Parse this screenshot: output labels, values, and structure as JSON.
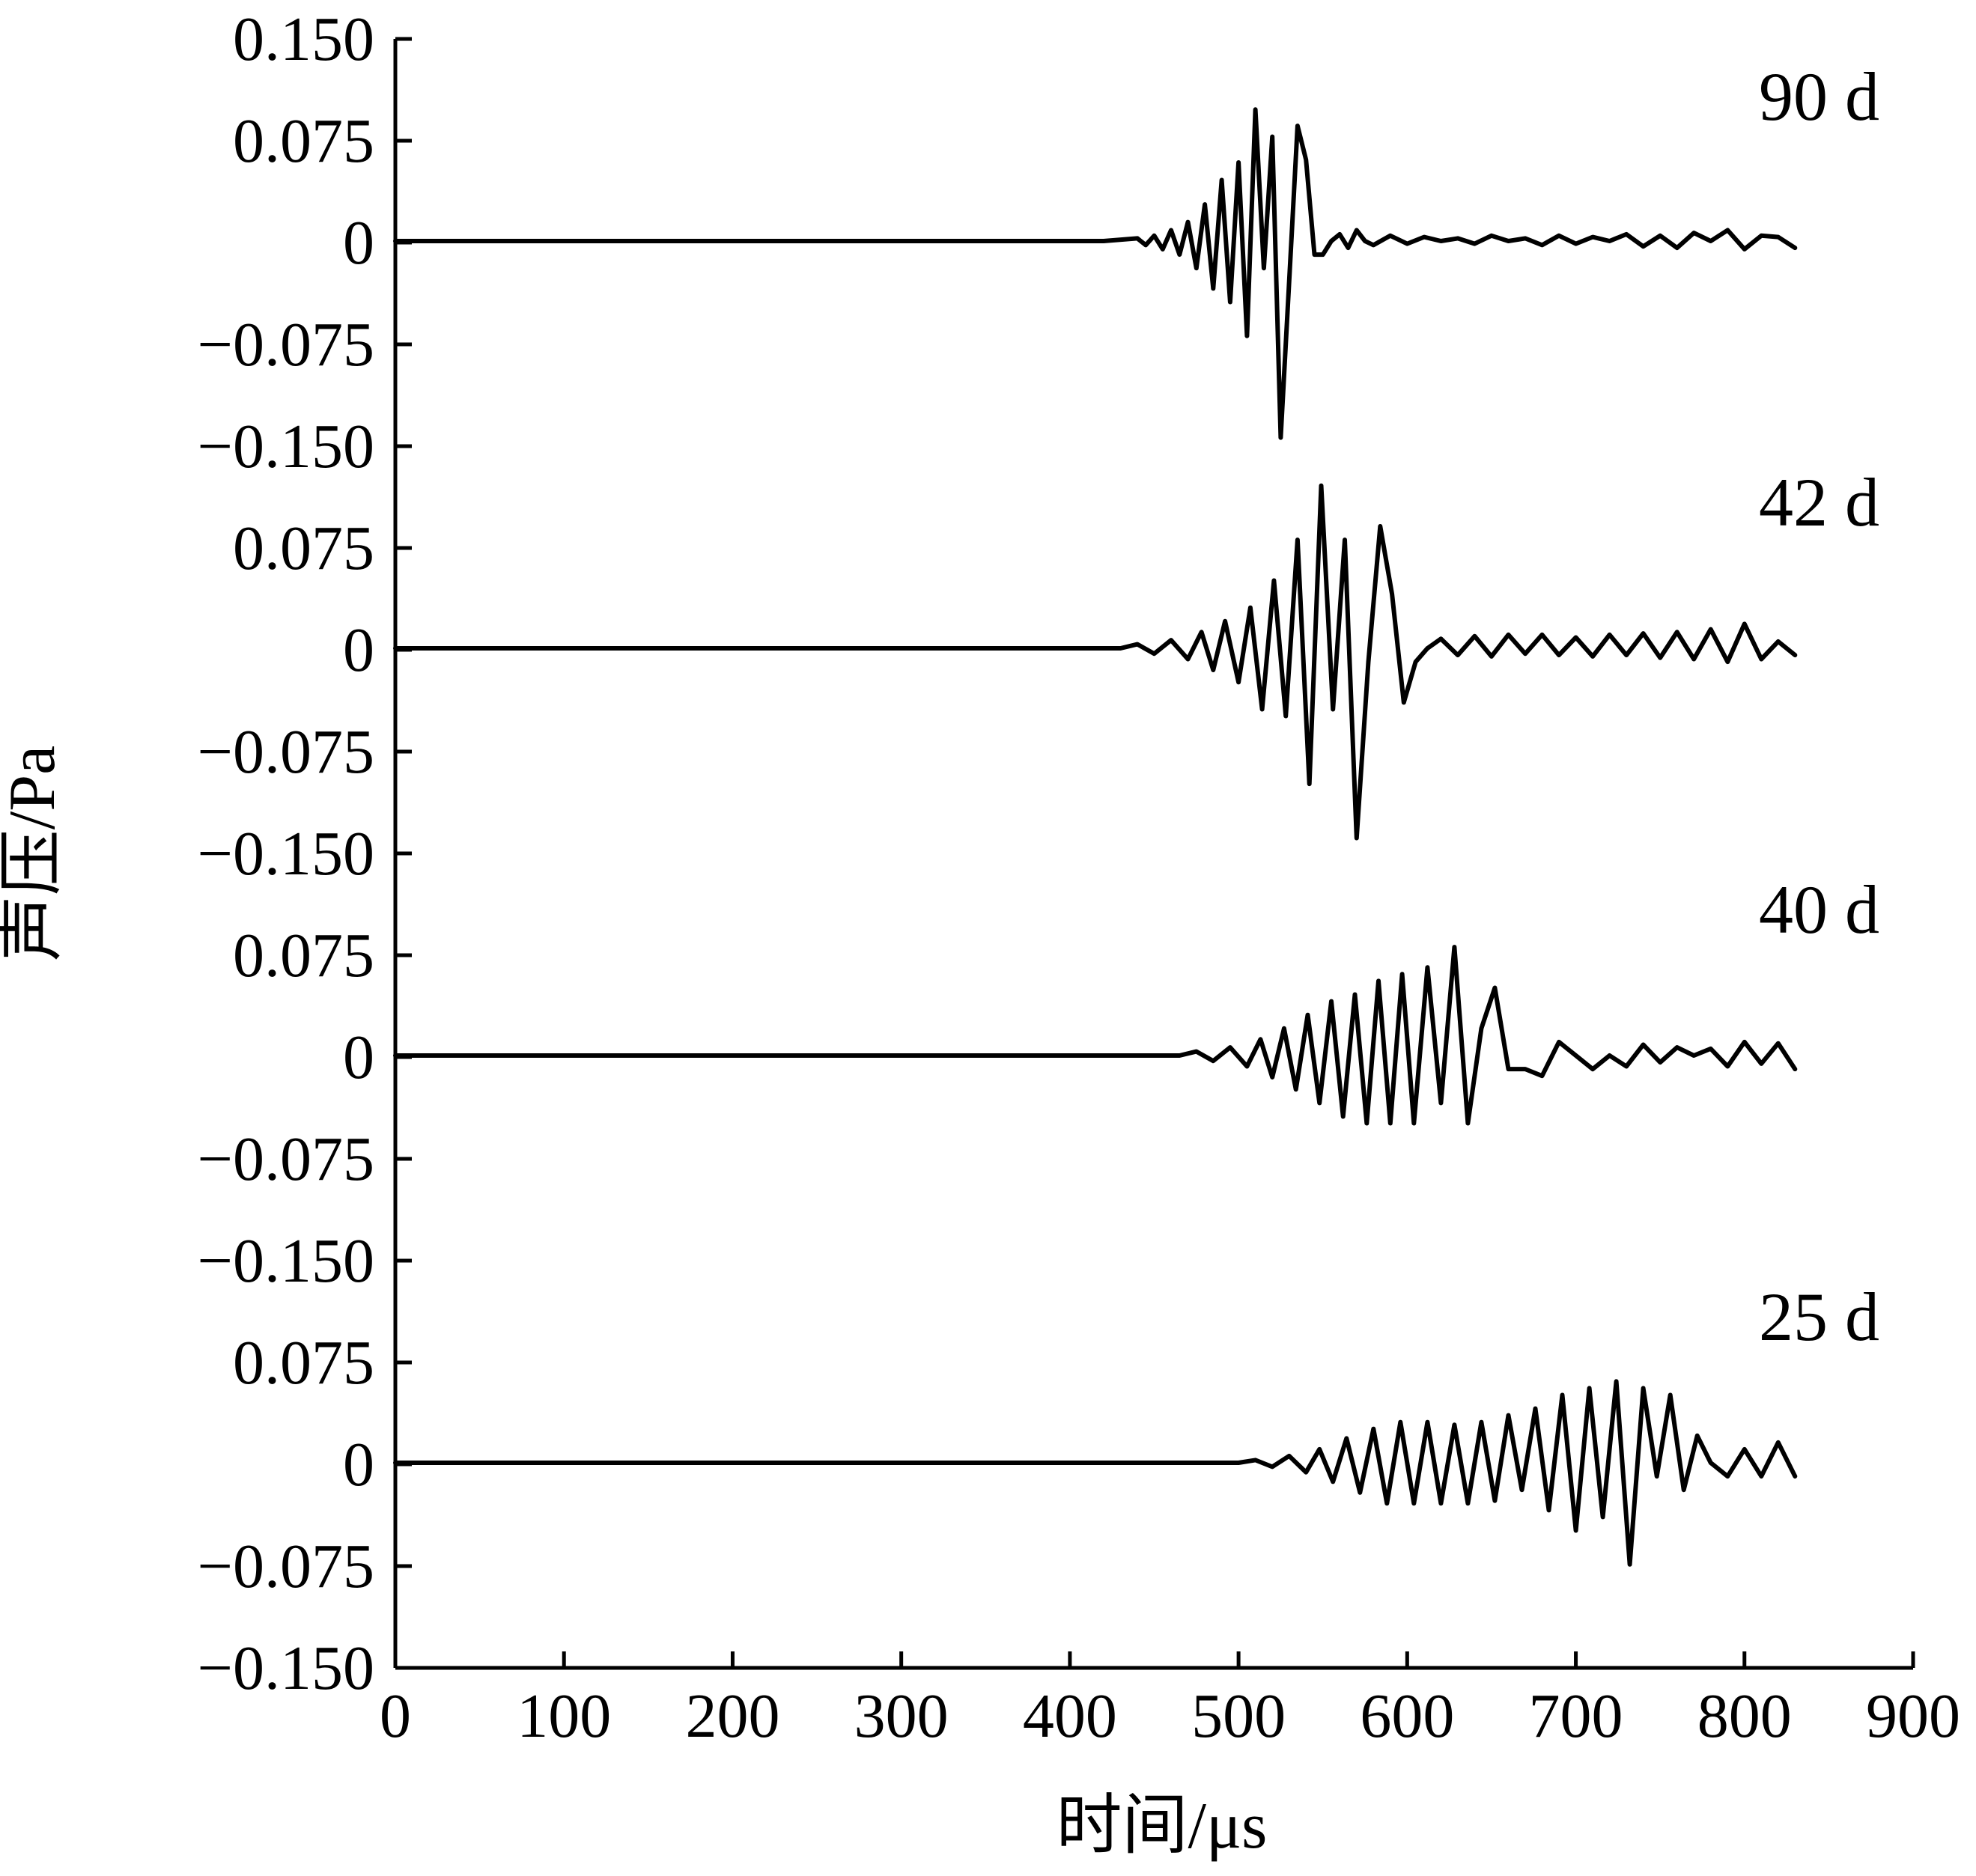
{
  "chart_data": {
    "type": "line",
    "title": "",
    "xlabel": "时间/μs",
    "ylabel": "声压/Pa",
    "xlim": [
      0,
      900
    ],
    "x_ticks": [
      "0",
      "100",
      "200",
      "300",
      "400",
      "500",
      "600",
      "700",
      "800",
      "900"
    ],
    "y_ticks_top_to_bottom": [
      "0.150",
      "0.075",
      "0",
      "−0.075",
      "−0.150",
      "0.075",
      "0",
      "−0.075",
      "−0.150",
      "0.075",
      "0",
      "−0.075",
      "−0.150",
      "0.075",
      "0",
      "−0.075",
      "−0.150"
    ],
    "panel_ylim": [
      -0.15,
      0.15
    ],
    "grid": false,
    "legend": "none",
    "series": [
      {
        "name": "90 d",
        "x": [
          0,
          420,
          440,
          445,
          450,
          455,
          460,
          465,
          470,
          475,
          480,
          485,
          490,
          495,
          500,
          505,
          510,
          515,
          520,
          525,
          530,
          535,
          540,
          545,
          550,
          555,
          560,
          565,
          570,
          575,
          580,
          590,
          600,
          610,
          620,
          630,
          640,
          650,
          660,
          670,
          680,
          690,
          700,
          710,
          720,
          730,
          740,
          750,
          760,
          770,
          780,
          790,
          800,
          810,
          820,
          830
        ],
        "values": [
          0,
          0,
          0.002,
          -0.003,
          0.004,
          -0.006,
          0.008,
          -0.01,
          0.014,
          -0.02,
          0.027,
          -0.035,
          0.045,
          -0.045,
          0.058,
          -0.07,
          0.097,
          -0.02,
          0.077,
          -0.145,
          -0.03,
          0.085,
          0.06,
          -0.01,
          -0.01,
          0.0,
          0.005,
          -0.005,
          0.008,
          0.0,
          -0.003,
          0.004,
          -0.002,
          0.003,
          0.0,
          0.002,
          -0.002,
          0.004,
          0.0,
          0.002,
          -0.003,
          0.004,
          -0.002,
          0.003,
          0.0,
          0.005,
          -0.004,
          0.004,
          -0.005,
          0.006,
          0.0,
          0.008,
          -0.006,
          0.004,
          0.003,
          -0.005
        ]
      },
      {
        "name": "42 d",
        "x": [
          0,
          430,
          440,
          450,
          460,
          470,
          478,
          485,
          492,
          500,
          507,
          514,
          521,
          528,
          535,
          542,
          549,
          556,
          563,
          570,
          577,
          584,
          591,
          598,
          605,
          612,
          620,
          630,
          640,
          650,
          660,
          670,
          680,
          690,
          700,
          710,
          720,
          730,
          740,
          750,
          760,
          770,
          780,
          790,
          800,
          810,
          820,
          830
        ],
        "values": [
          0,
          0,
          0.003,
          -0.004,
          0.006,
          -0.008,
          0.012,
          -0.016,
          0.02,
          -0.025,
          0.03,
          -0.045,
          0.05,
          -0.05,
          0.08,
          -0.1,
          0.12,
          -0.045,
          0.08,
          -0.14,
          -0.01,
          0.09,
          0.04,
          -0.04,
          -0.01,
          0.0,
          0.007,
          -0.005,
          0.009,
          -0.006,
          0.01,
          -0.004,
          0.01,
          -0.005,
          0.008,
          -0.006,
          0.01,
          -0.005,
          0.011,
          -0.007,
          0.012,
          -0.008,
          0.014,
          -0.01,
          0.018,
          -0.008,
          0.005,
          -0.005
        ]
      },
      {
        "name": "40 d",
        "x": [
          0,
          465,
          475,
          485,
          495,
          505,
          513,
          520,
          527,
          534,
          541,
          548,
          555,
          562,
          569,
          576,
          583,
          590,
          597,
          604,
          612,
          620,
          628,
          636,
          644,
          652,
          660,
          670,
          680,
          690,
          700,
          710,
          720,
          730,
          740,
          750,
          760,
          770,
          780,
          790,
          800,
          810,
          820,
          830
        ],
        "values": [
          0,
          0,
          0.003,
          -0.004,
          0.006,
          -0.008,
          0.012,
          -0.016,
          0.02,
          -0.025,
          0.03,
          -0.035,
          0.04,
          -0.045,
          0.045,
          -0.05,
          0.055,
          -0.05,
          0.06,
          -0.05,
          0.065,
          -0.035,
          0.08,
          -0.05,
          0.02,
          0.05,
          -0.01,
          -0.01,
          -0.015,
          0.01,
          0.0,
          -0.01,
          0.0,
          -0.008,
          0.008,
          -0.005,
          0.006,
          0.0,
          0.005,
          -0.008,
          0.01,
          -0.006,
          0.009,
          -0.01
        ]
      },
      {
        "name": "25 d",
        "x": [
          0,
          500,
          510,
          520,
          530,
          540,
          548,
          556,
          564,
          572,
          580,
          588,
          596,
          604,
          612,
          620,
          628,
          636,
          644,
          652,
          660,
          668,
          676,
          684,
          692,
          700,
          708,
          716,
          724,
          732,
          740,
          748,
          756,
          764,
          772,
          780,
          790,
          800,
          810,
          820,
          830
        ],
        "values": [
          0,
          0,
          0.002,
          -0.003,
          0.005,
          -0.007,
          0.01,
          -0.014,
          0.018,
          -0.022,
          0.025,
          -0.03,
          0.03,
          -0.03,
          0.03,
          -0.03,
          0.028,
          -0.03,
          0.03,
          -0.028,
          0.035,
          -0.02,
          0.04,
          -0.035,
          0.05,
          -0.05,
          0.055,
          -0.04,
          0.06,
          -0.075,
          0.055,
          -0.01,
          0.05,
          -0.02,
          0.02,
          0.0,
          -0.01,
          0.01,
          -0.01,
          0.015,
          -0.01
        ]
      }
    ],
    "trace_labels": [
      "90 d",
      "42 d",
      "40 d",
      "25 d"
    ]
  }
}
